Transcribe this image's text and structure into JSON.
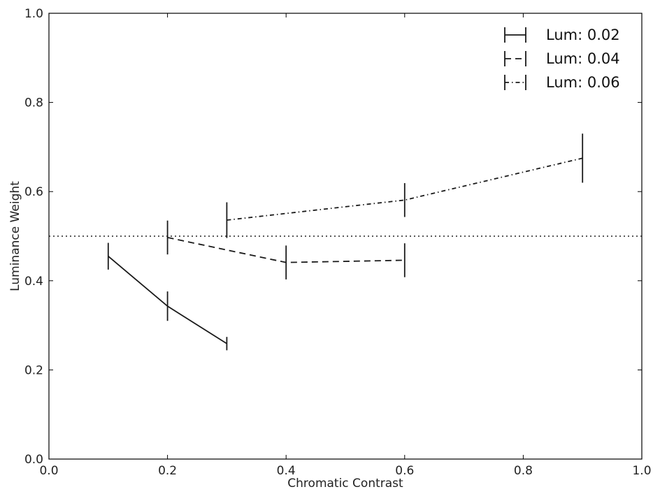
{
  "chart_data": {
    "type": "line",
    "title": "",
    "xlabel": "Chromatic Contrast",
    "ylabel": "Luminance Weight",
    "xlim": [
      0.0,
      1.0
    ],
    "ylim": [
      0.0,
      1.0
    ],
    "xticks": [
      0.0,
      0.2,
      0.4,
      0.6,
      0.8,
      1.0
    ],
    "yticks": [
      0.0,
      0.2,
      0.4,
      0.6,
      0.8,
      1.0
    ],
    "xtick_labels": [
      "0.0",
      "0.2",
      "0.4",
      "0.6",
      "0.8",
      "1.0"
    ],
    "ytick_labels": [
      "0.0",
      "0.2",
      "0.4",
      "0.6",
      "0.8",
      "1.0"
    ],
    "grid": false,
    "legend_position": "top-right",
    "reference_line": {
      "y": 0.5,
      "style": "dotted"
    },
    "series": [
      {
        "name": "Lum: 0.02",
        "style": "solid",
        "x": [
          0.1,
          0.2,
          0.3
        ],
        "y": [
          0.455,
          0.343,
          0.259
        ],
        "err": [
          0.03,
          0.033,
          0.015
        ]
      },
      {
        "name": "Lum: 0.04",
        "style": "dashed",
        "x": [
          0.2,
          0.4,
          0.6
        ],
        "y": [
          0.497,
          0.441,
          0.446
        ],
        "err": [
          0.038,
          0.038,
          0.038
        ]
      },
      {
        "name": "Lum: 0.06",
        "style": "dashdot",
        "x": [
          0.3,
          0.6,
          0.9
        ],
        "y": [
          0.536,
          0.581,
          0.675
        ],
        "err": [
          0.04,
          0.038,
          0.055
        ]
      }
    ]
  }
}
